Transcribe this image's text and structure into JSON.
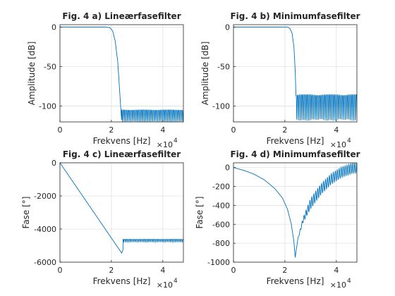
{
  "colors": {
    "line": "#0072bd",
    "axis": "#262626",
    "grid": "#e0e0e0"
  },
  "chart_data": [
    {
      "type": "line",
      "title": "Fig. 4 a) Lineærfasefilter",
      "xlabel": "Frekvens [Hz]",
      "ylabel": "Amplitude [dB]",
      "exponent": "×10",
      "exponent_power": "4",
      "xlim": [
        0,
        48000
      ],
      "ylim": [
        -120,
        3
      ],
      "xticks": [
        0,
        20000,
        40000
      ],
      "xticklabels": [
        "0",
        "2",
        "4"
      ],
      "yticks": [
        0,
        -50,
        -100
      ],
      "yticklabels": [
        "0",
        "-50",
        "-100"
      ],
      "grid": true,
      "series": [
        {
          "x": [
            0,
            18000,
            19500,
            20500,
            21500,
            22500,
            23000,
            23500,
            24000,
            48000
          ],
          "y": [
            0,
            0,
            -1,
            -5,
            -18,
            -45,
            -70,
            -95,
            -120,
            -105
          ],
          "ripple_from": 24000,
          "ripple_top": -105,
          "ripple_bottom": -120
        }
      ]
    },
    {
      "type": "line",
      "title": "Fig. 4 b) Minimumfasefilter",
      "xlabel": "Frekvens [Hz]",
      "ylabel": "Amplitude [dB]",
      "exponent": "×10",
      "exponent_power": "4",
      "xlim": [
        0,
        48000
      ],
      "ylim": [
        -120,
        3
      ],
      "xticks": [
        0,
        20000,
        40000
      ],
      "xticklabels": [
        "0",
        "2",
        "4"
      ],
      "yticks": [
        0,
        -50,
        -100
      ],
      "yticklabels": [
        "0",
        "-50",
        "-100"
      ],
      "grid": true,
      "series": [
        {
          "x": [
            0,
            21000,
            22000,
            22800,
            23500,
            24000,
            24300,
            48000
          ],
          "y": [
            0,
            0,
            -2,
            -8,
            -25,
            -55,
            -86,
            -86
          ],
          "ripple_from": 24300,
          "ripple_top": -86,
          "ripple_bottom": -118
        }
      ]
    },
    {
      "type": "line",
      "title": "Fig. 4 c) Lineærfasefilter",
      "xlabel": "Frekvens [Hz]",
      "ylabel": "Fase [°]",
      "exponent": "×10",
      "exponent_power": "4",
      "xlim": [
        0,
        48000
      ],
      "ylim": [
        -6000,
        0
      ],
      "xticks": [
        0,
        20000,
        40000
      ],
      "xticklabels": [
        "0",
        "2",
        "4"
      ],
      "yticks": [
        0,
        -2000,
        -4000,
        -6000
      ],
      "yticklabels": [
        "0",
        "-2000",
        "-4000",
        "-6000"
      ],
      "grid": true,
      "series": [
        {
          "x": [
            0,
            24000,
            24500,
            26000,
            28000,
            32000,
            40000,
            48000
          ],
          "y": [
            0,
            -5450,
            -5250,
            -5000,
            -4850,
            -4750,
            -4700,
            -4650
          ],
          "ripple_from": 24500,
          "ripple_top": -4620,
          "ripple_bottom": -4780
        }
      ]
    },
    {
      "type": "line",
      "title": "Fig. 4 d) Minimumfasefilter",
      "xlabel": "Frekvens [Hz]",
      "ylabel": "Fase [°]",
      "exponent": "×10",
      "exponent_power": "4",
      "xlim": [
        0,
        48000
      ],
      "ylim": [
        -1000,
        50
      ],
      "xticks": [
        0,
        20000,
        40000
      ],
      "xticklabels": [
        "0",
        "2",
        "4"
      ],
      "yticks": [
        0,
        -200,
        -400,
        -600,
        -800,
        -1000
      ],
      "yticklabels": [
        "0",
        "-200",
        "-400",
        "-600",
        "-800",
        "-1000"
      ],
      "grid": true,
      "series": [
        {
          "x": [
            0,
            4000,
            8000,
            12000,
            16000,
            19000,
            21000,
            22500,
            23500,
            24000,
            25000,
            27000,
            30000,
            34000,
            38000,
            42000,
            46000,
            48000
          ],
          "y": [
            0,
            -30,
            -70,
            -130,
            -220,
            -320,
            -440,
            -600,
            -780,
            -950,
            -760,
            -560,
            -380,
            -230,
            -120,
            -50,
            -10,
            0
          ],
          "ripple_from": 24200,
          "ripple_amp": 55
        }
      ]
    }
  ]
}
